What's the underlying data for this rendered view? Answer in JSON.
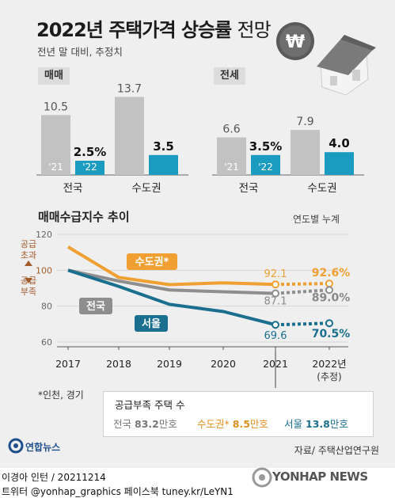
{
  "title_main": "2022년 주택가격 상승률",
  "title_light": "전망",
  "subtitle": "전년 말 대비, 추정치",
  "colors": {
    "gray": "#c2c2c2",
    "teal": "#1a9bc0",
    "orange": "#f0a033",
    "line_gray": "#8e8e8e",
    "blue": "#1a6f8f",
    "brown": "#a35b2a"
  },
  "icons": [
    "won-coin-icon",
    "house-icon",
    "yonhap-logo-icon",
    "pin-icon"
  ],
  "chart_data": [
    {
      "type": "bar",
      "panel_label": "매매",
      "categories": [
        "전국",
        "수도권"
      ],
      "series": [
        {
          "name": "'21",
          "values": [
            10.5,
            13.7
          ],
          "labels": [
            "10.5",
            "13.7"
          ]
        },
        {
          "name": "'22",
          "values": [
            2.5,
            3.5
          ],
          "labels": [
            "2.5%",
            "3.5"
          ]
        }
      ]
    },
    {
      "type": "bar",
      "panel_label": "전세",
      "categories": [
        "전국",
        "수도권"
      ],
      "series": [
        {
          "name": "'21",
          "values": [
            6.6,
            7.9
          ],
          "labels": [
            "6.6",
            "7.9"
          ]
        },
        {
          "name": "'22",
          "values": [
            3.5,
            4.0
          ],
          "labels": [
            "3.5%",
            "4.0"
          ]
        }
      ]
    },
    {
      "type": "line",
      "title": "매매수급지수 추이",
      "note": "연도별 누계",
      "x": [
        "2017",
        "2018",
        "2019",
        "2020",
        "2021",
        "2022년"
      ],
      "x_sub": [
        "",
        "",
        "",
        "",
        "",
        "(추정)"
      ],
      "yticks": [
        60,
        80,
        100,
        120
      ],
      "ylim": [
        60,
        120
      ],
      "y_left_labels": {
        "upper": "공급\n초과",
        "lower": "공급\n부족"
      },
      "series": [
        {
          "name": "수도권*",
          "values": [
            113,
            96,
            92,
            93,
            92.1,
            92.6
          ],
          "end_labels": [
            "92.1",
            "92.6%"
          ]
        },
        {
          "name": "전국",
          "values": [
            100,
            94,
            89,
            88,
            87.1,
            89.0
          ],
          "end_labels": [
            "87.1",
            "89.0%"
          ]
        },
        {
          "name": "서울",
          "values": [
            100,
            91,
            81,
            77,
            69.6,
            70.5
          ],
          "end_labels": [
            "69.6",
            "70.5%"
          ]
        }
      ]
    }
  ],
  "footnote": "*인천, 경기",
  "shortage_box": {
    "title": "공급부족 주택 수",
    "items": [
      {
        "region": "전국",
        "value": "83.2",
        "unit": "만호"
      },
      {
        "region": "수도권*",
        "value": "8.5",
        "unit": "만호"
      },
      {
        "region": "서울",
        "value": "13.8",
        "unit": "만호"
      }
    ]
  },
  "source": "자료/ 주택산업연구원",
  "logo_text": "연합뉴스",
  "credit_line1": "이경아 인턴 / 20211214",
  "credit_line2": "트위터 @yonhap_graphics  페이스북 tuney.kr/LeYN1",
  "watermark": "YONHAP NEWS"
}
